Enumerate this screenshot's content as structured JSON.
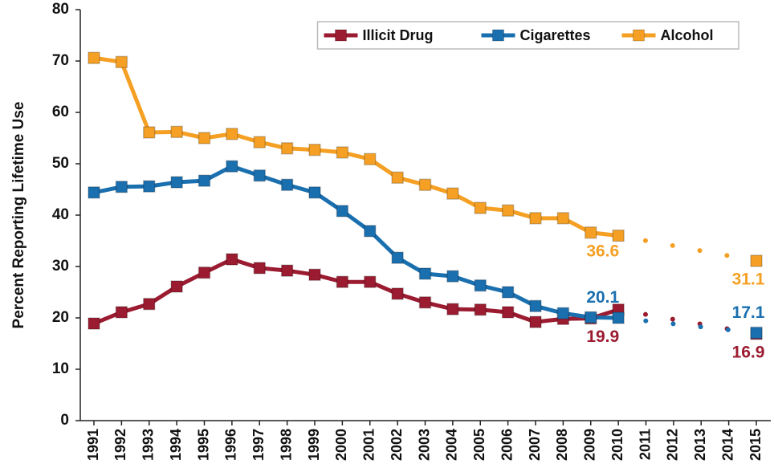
{
  "chart_data": {
    "type": "line",
    "y_label": "Percent Reporting Lifetime Use",
    "categories": [
      "1991",
      "1992",
      "1993",
      "1994",
      "1995",
      "1996",
      "1997",
      "1998",
      "1999",
      "2000",
      "2001",
      "2002",
      "2003",
      "2004",
      "2005",
      "2006",
      "2007",
      "2008",
      "2009",
      "2010",
      "2011",
      "2012",
      "2013",
      "2014",
      "2015"
    ],
    "series": [
      {
        "name": "Illicit Drug",
        "color": "#9b1b30",
        "values": [
          18.9,
          21.1,
          22.7,
          26.1,
          28.8,
          31.4,
          29.7,
          29.2,
          28.4,
          27.0,
          27.0,
          24.7,
          23.0,
          21.7,
          21.6,
          21.1,
          19.2,
          19.8,
          19.9,
          21.6,
          null,
          null,
          null,
          null,
          16.9
        ],
        "value_labels": [
          null,
          null,
          null,
          null,
          null,
          null,
          null,
          null,
          null,
          null,
          null,
          null,
          null,
          null,
          null,
          null,
          null,
          null,
          "19.9",
          null,
          null,
          null,
          null,
          null,
          "16.9"
        ],
        "label_side": "below"
      },
      {
        "name": "Cigarettes",
        "color": "#1a6faf",
        "values": [
          44.4,
          45.5,
          45.6,
          46.4,
          46.7,
          49.5,
          47.7,
          45.9,
          44.4,
          40.8,
          36.9,
          31.7,
          28.6,
          28.1,
          26.3,
          25.0,
          22.3,
          20.9,
          20.1,
          20.0,
          null,
          null,
          null,
          null,
          17.1
        ],
        "value_labels": [
          null,
          null,
          null,
          null,
          null,
          null,
          null,
          null,
          null,
          null,
          null,
          null,
          null,
          null,
          null,
          null,
          null,
          null,
          "20.1",
          null,
          null,
          null,
          null,
          null,
          "17.1"
        ],
        "label_side": "above"
      },
      {
        "name": "Alcohol",
        "color": "#f5a024",
        "values": [
          70.6,
          69.8,
          56.1,
          56.2,
          55.0,
          55.8,
          54.2,
          53.0,
          52.7,
          52.2,
          50.9,
          47.3,
          45.9,
          44.2,
          41.4,
          40.9,
          39.4,
          39.4,
          36.6,
          36.0,
          null,
          null,
          null,
          null,
          31.1
        ],
        "value_labels": [
          null,
          null,
          null,
          null,
          null,
          null,
          null,
          null,
          null,
          null,
          null,
          null,
          null,
          null,
          null,
          null,
          null,
          null,
          "36.6",
          null,
          null,
          null,
          null,
          null,
          "31.1"
        ],
        "label_side": "below"
      }
    ],
    "gap_style": "dotted",
    "ylim": [
      0,
      80
    ],
    "yticks": [
      0,
      10,
      20,
      30,
      40,
      50,
      60,
      70,
      80
    ],
    "legend": "top-right",
    "grid": false
  }
}
